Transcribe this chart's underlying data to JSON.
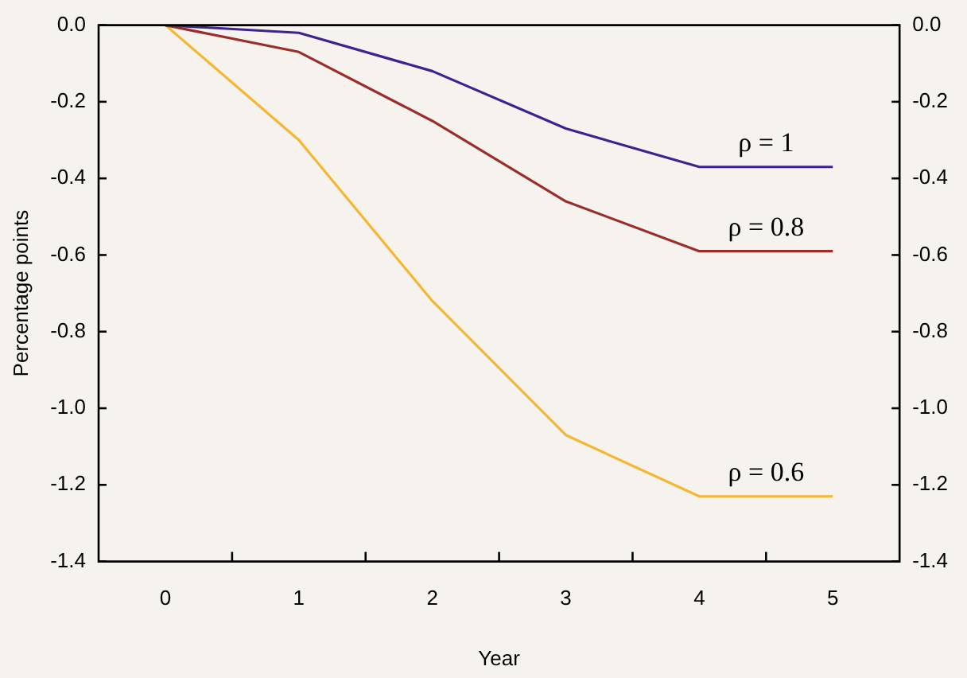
{
  "chart_data": {
    "type": "line",
    "xlabel": "Year",
    "ylabel": "Percentage points",
    "categories": [
      "0",
      "1",
      "2",
      "3",
      "4",
      "5"
    ],
    "series": [
      {
        "name": "ρ = 1",
        "color": "#3b2390",
        "values": [
          0,
          -0.02,
          -0.12,
          -0.27,
          -0.37,
          -0.37
        ]
      },
      {
        "name": "ρ = 0.8",
        "color": "#9b2e2b",
        "values": [
          0,
          -0.07,
          -0.25,
          -0.46,
          -0.59,
          -0.59
        ]
      },
      {
        "name": "ρ = 0.6",
        "color": "#f5b731",
        "values": [
          0,
          -0.3,
          -0.72,
          -1.07,
          -1.23,
          -1.23
        ]
      }
    ],
    "ylim": [
      -1.4,
      0
    ],
    "yticks": [
      {
        "value": 0,
        "label": "0.0"
      },
      -0.2,
      -0.4,
      -0.6,
      -0.8,
      {
        "value": -1,
        "label": "-1.0"
      },
      -1.2,
      -1.4
    ],
    "y2lim": [
      -1.4,
      0
    ],
    "y2ticks": [
      {
        "value": 0,
        "label": "0.0"
      },
      -0.2,
      -0.4,
      -0.6,
      -0.8,
      {
        "value": -1,
        "label": "-1.0"
      },
      -1.2,
      -1.4
    ],
    "grid": false,
    "legend": false,
    "marker": "none",
    "line_style": "solid"
  }
}
